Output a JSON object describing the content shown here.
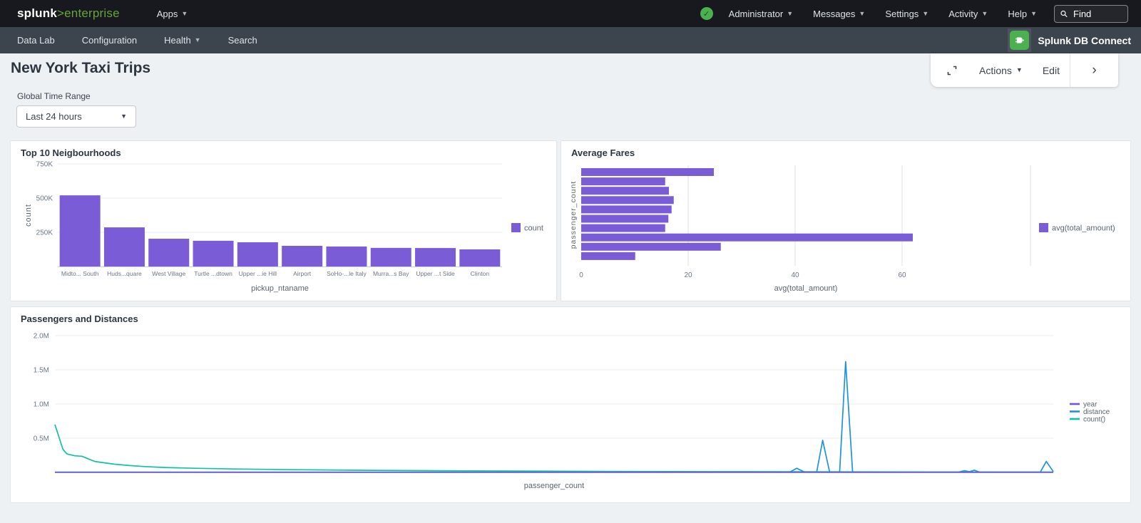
{
  "topnav": {
    "logo_brand": "splunk",
    "logo_gt": ">",
    "logo_product": "enterprise",
    "apps_label": "Apps",
    "menus": [
      {
        "label": "Administrator"
      },
      {
        "label": "Messages"
      },
      {
        "label": "Settings"
      },
      {
        "label": "Activity"
      },
      {
        "label": "Help"
      }
    ],
    "find_placeholder": "Find",
    "brand_green": "#65a637",
    "status_green": "#4caf50"
  },
  "appnav": {
    "items": [
      {
        "label": "Data Lab"
      },
      {
        "label": "Configuration"
      },
      {
        "label": "Health"
      },
      {
        "label": "Search"
      }
    ],
    "app_name": "Splunk DB Connect"
  },
  "toolbar": {
    "actions_label": "Actions",
    "edit_label": "Edit",
    "chevron": "›"
  },
  "page": {
    "title": "New York Taxi Trips",
    "time_range_label": "Global Time Range",
    "time_range_value": "Last 24 hours"
  },
  "chart_data": [
    {
      "type": "bar",
      "title": "Top 10 Neigbourhoods",
      "xlabel": "pickup_ntaname",
      "ylabel": "count",
      "categories": [
        "Midto... South",
        "Huds...quare",
        "West Village",
        "Turtle ...dtown",
        "Upper ...ie Hill",
        "Airport",
        "SoHo-...le Italy",
        "Murra...s Bay",
        "Upper ...t Side",
        "Clinton"
      ],
      "values": [
        520000,
        286000,
        203000,
        188000,
        177000,
        151000,
        146000,
        136000,
        135000,
        125000
      ],
      "yticks": [
        {
          "label": "250K",
          "value": 250000
        },
        {
          "label": "500K",
          "value": 500000
        },
        {
          "label": "750K",
          "value": 750000
        }
      ],
      "ylim": [
        0,
        830000
      ],
      "grid": "horizontal",
      "bar_color": "#7b5cd7",
      "legend": [
        {
          "label": "count",
          "color": "#7b5cd7"
        }
      ],
      "legend_position": "right"
    },
    {
      "type": "hbar",
      "title": "Average Fares",
      "xlabel": "avg(total_amount)",
      "ylabel": "passenger_count",
      "values": [
        24.8,
        15.7,
        16.4,
        17.3,
        16.9,
        16.3,
        15.7,
        62,
        26.1,
        10.1
      ],
      "xticks": [
        {
          "label": "0",
          "value": 0
        },
        {
          "label": "20",
          "value": 20
        },
        {
          "label": "40",
          "value": 40
        },
        {
          "label": "60",
          "value": 60
        }
      ],
      "xlim": [
        0,
        84
      ],
      "grid": "vertical",
      "bar_color": "#7b5cd7",
      "legend": [
        {
          "label": "avg(total_amount)",
          "color": "#7b5cd7"
        }
      ],
      "legend_position": "right"
    },
    {
      "type": "line",
      "title": "Passengers and Distances",
      "xlabel": "passenger_count",
      "ylabel": "",
      "yticks": [
        {
          "label": "0.5M",
          "value": 500000
        },
        {
          "label": "1.0M",
          "value": 1000000
        },
        {
          "label": "1.5M",
          "value": 1500000
        },
        {
          "label": "2.0M",
          "value": 2000000
        }
      ],
      "ylim": [
        0,
        2150000
      ],
      "x_axis_note": "x positions normalized 0-100, no x tick labels shown",
      "grid": "horizontal",
      "legend_position": "right",
      "series": [
        {
          "name": "year",
          "color": "#6a59d1",
          "points": [
            [
              0,
              2000
            ],
            [
              100,
              2000
            ]
          ]
        },
        {
          "name": "distance",
          "color": "#1e93dd",
          "points": [
            [
              0,
              4000
            ],
            [
              70,
              4000
            ],
            [
              73.6,
              4000
            ],
            [
              74.3,
              60000
            ],
            [
              75.1,
              4000
            ],
            [
              76.3,
              4000
            ],
            [
              76.9,
              470000
            ],
            [
              77.6,
              4000
            ],
            [
              78.6,
              4000
            ],
            [
              79.2,
              1620000
            ],
            [
              79.9,
              4000
            ],
            [
              90.5,
              4000
            ],
            [
              91.1,
              25000
            ],
            [
              91.6,
              10000
            ],
            [
              92.1,
              32000
            ],
            [
              92.6,
              4000
            ],
            [
              98.7,
              4000
            ],
            [
              99.3,
              160000
            ],
            [
              100,
              12000
            ]
          ]
        },
        {
          "name": "count()",
          "color": "#10c3a0",
          "points": [
            [
              0,
              700000
            ],
            [
              0.4,
              520000
            ],
            [
              0.8,
              340000
            ],
            [
              1.2,
              270000
            ],
            [
              2,
              243000
            ],
            [
              2.7,
              236000
            ],
            [
              3.3,
              200000
            ],
            [
              4,
              160000
            ],
            [
              5,
              140000
            ],
            [
              6,
              120000
            ],
            [
              7.5,
              100000
            ],
            [
              9,
              85000
            ],
            [
              11,
              72000
            ],
            [
              14,
              60000
            ],
            [
              18,
              50000
            ],
            [
              24,
              40000
            ],
            [
              32,
              30000
            ],
            [
              42,
              22000
            ],
            [
              55,
              15000
            ],
            [
              70,
              10000
            ],
            [
              85,
              7000
            ],
            [
              100,
              5000
            ]
          ]
        }
      ]
    }
  ]
}
